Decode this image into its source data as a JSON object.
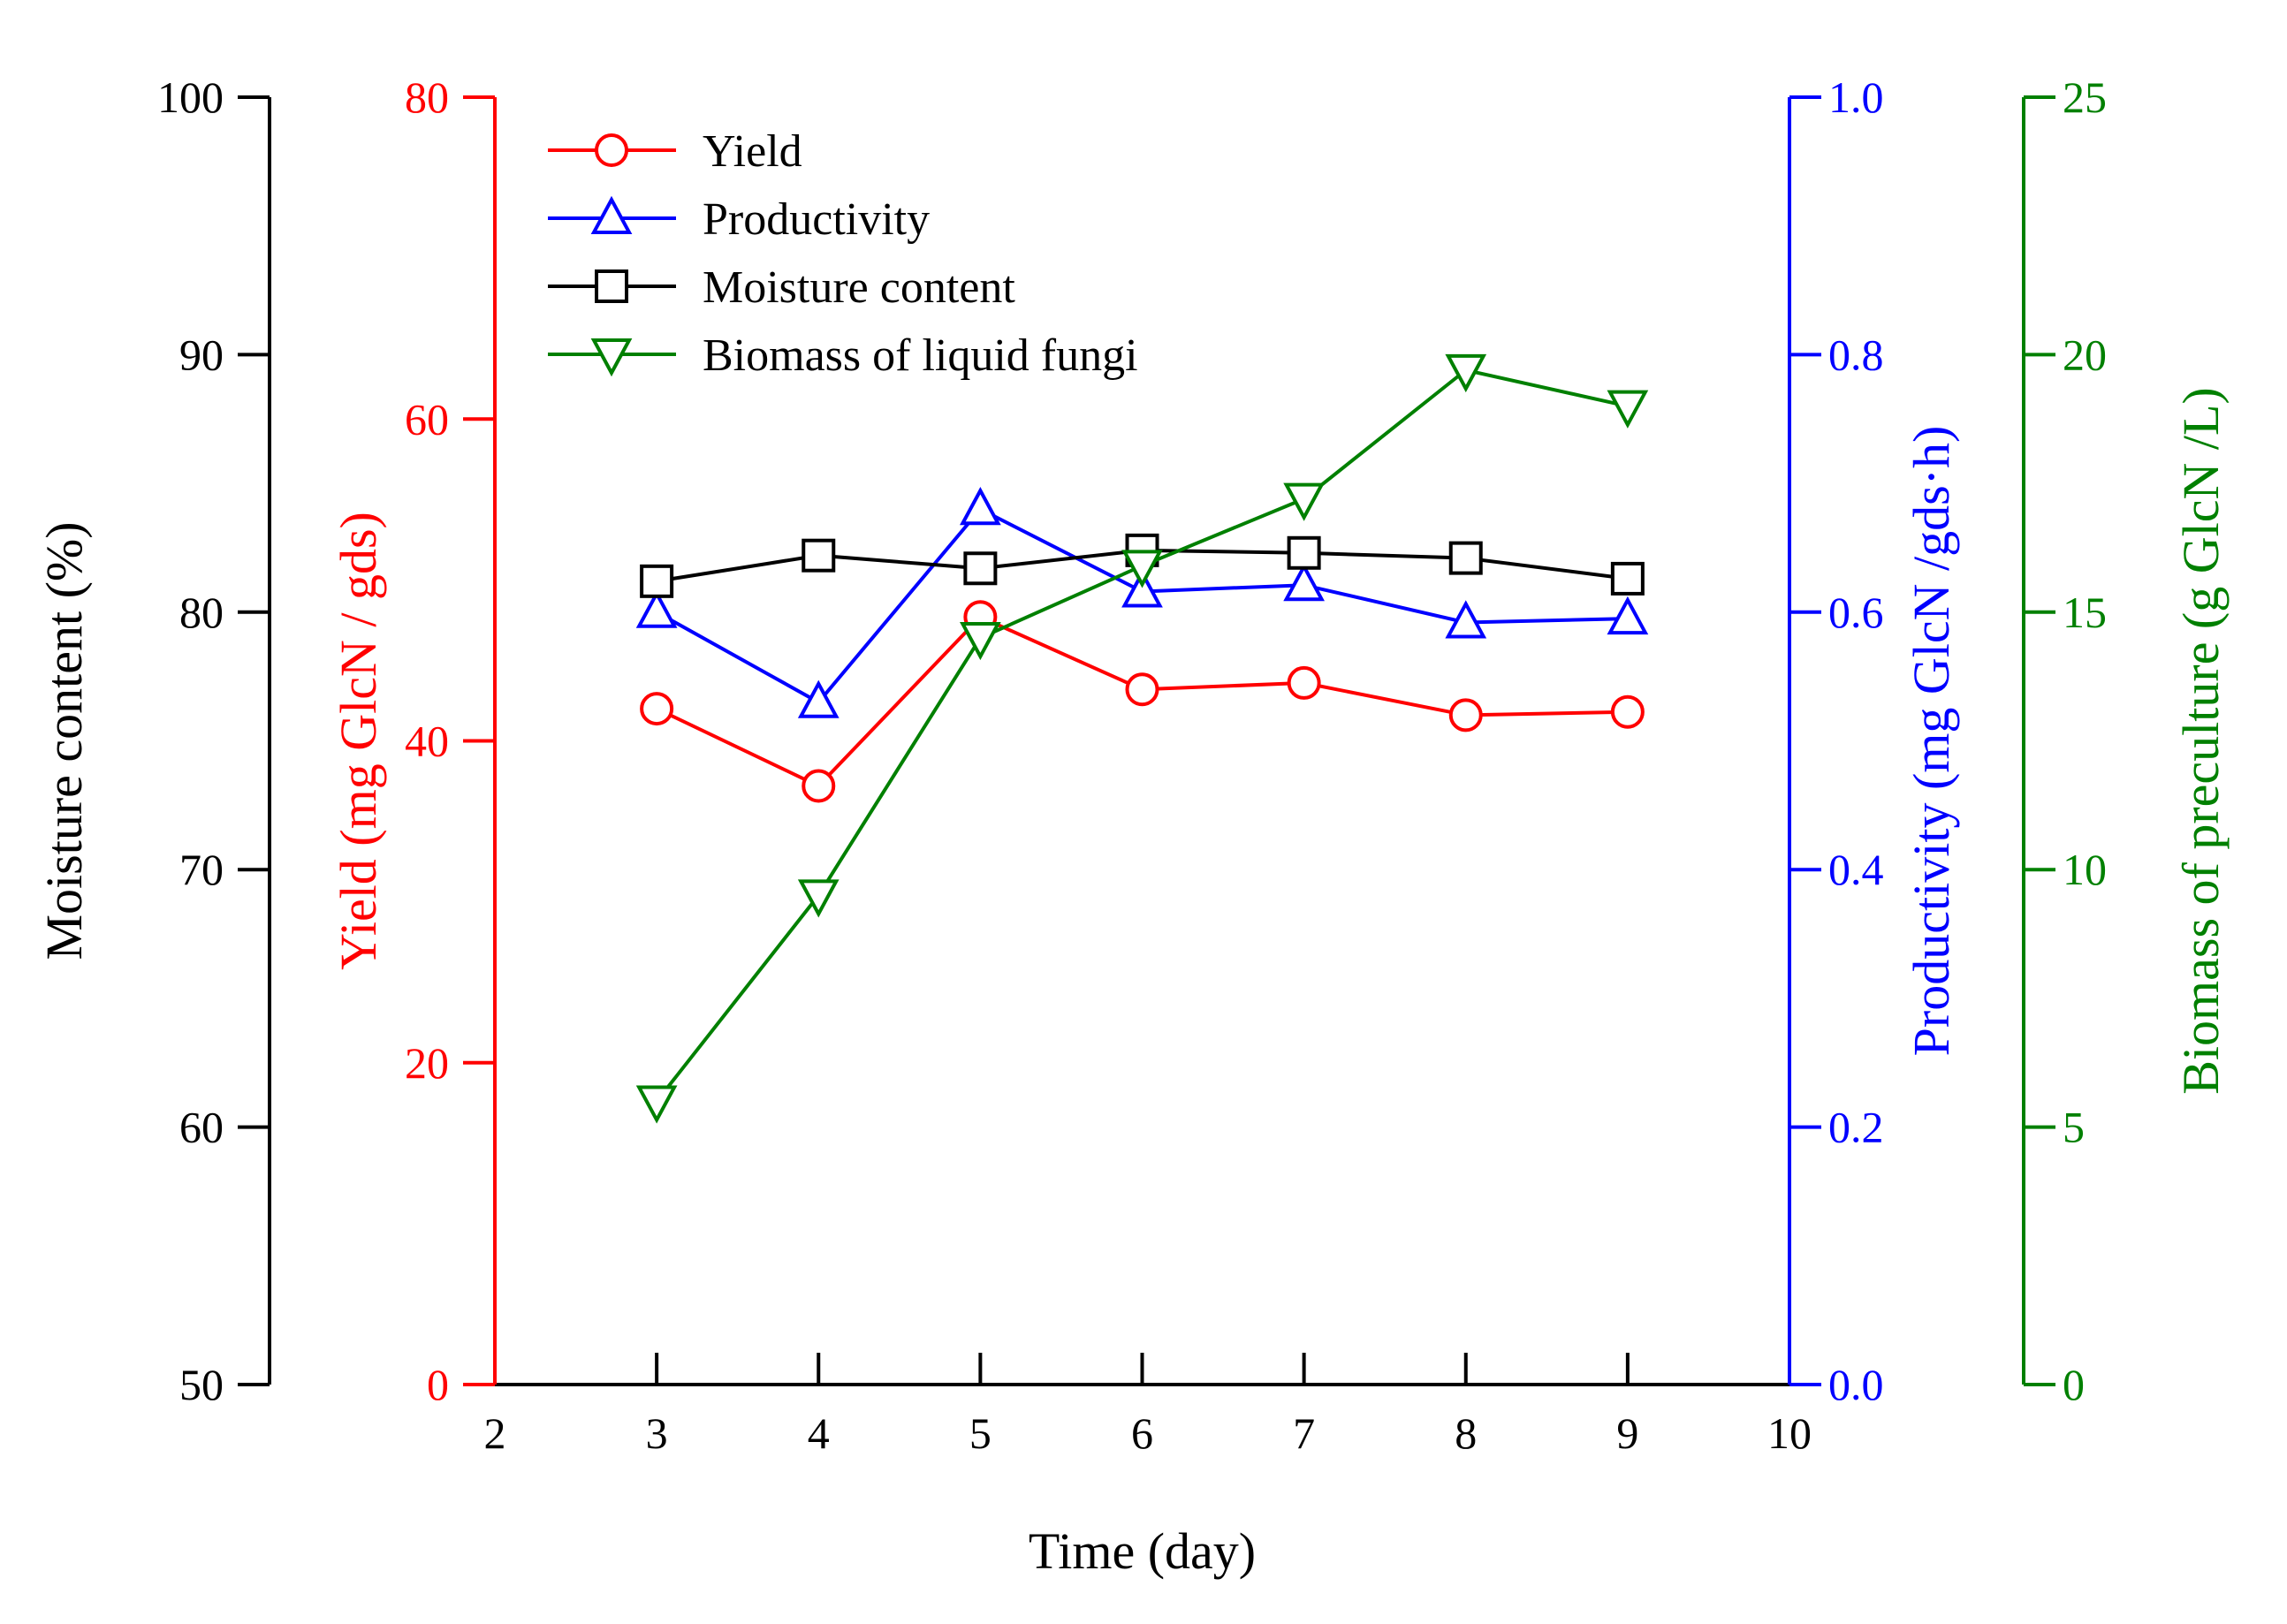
{
  "chart_data": {
    "type": "line",
    "x": [
      3,
      4,
      5,
      6,
      7,
      8,
      9
    ],
    "xlabel": "Time (day)",
    "xlim": [
      2,
      10
    ],
    "xticks": [
      "2",
      "3",
      "4",
      "5",
      "6",
      "7",
      "8",
      "9",
      "10"
    ],
    "axes": {
      "moisture": {
        "label": "Moisture content (%)",
        "range": [
          50,
          100
        ],
        "ticks": [
          "50",
          "60",
          "70",
          "80",
          "90",
          "100"
        ],
        "color": "#000000"
      },
      "yield": {
        "label": "Yield (mg GlcN / gds)",
        "range": [
          0,
          80
        ],
        "ticks": [
          "0",
          "20",
          "40",
          "60",
          "80"
        ],
        "color": "#ff0000"
      },
      "productivity": {
        "label": "Productivity (mg GlcN /gds·h)",
        "range": [
          0,
          1
        ],
        "ticks": [
          "0.0",
          "0.2",
          "0.4",
          "0.6",
          "0.8",
          "1.0"
        ],
        "color": "#0000ff"
      },
      "biomass": {
        "label": "Biomass of preculture (g GlcN /L)",
        "range": [
          0,
          25
        ],
        "ticks": [
          "0",
          "5",
          "10",
          "15",
          "20",
          "25"
        ],
        "color": "#008000"
      }
    },
    "series": [
      {
        "name": "Yield",
        "axis": "yield",
        "marker": "circle",
        "color": "#ff0000",
        "values": [
          42.0,
          37.2,
          47.7,
          43.2,
          43.6,
          41.6,
          41.8
        ]
      },
      {
        "name": "Productivity",
        "axis": "productivity",
        "marker": "triangle-up",
        "color": "#0000ff",
        "values": [
          0.6,
          0.53,
          0.68,
          0.616,
          0.621,
          0.592,
          0.595
        ]
      },
      {
        "name": "Moisture content",
        "axis": "moisture",
        "marker": "square",
        "color": "#000000",
        "values": [
          81.2,
          82.2,
          81.7,
          82.4,
          82.3,
          82.1,
          81.3
        ]
      },
      {
        "name": "Biomass of liquid fungi",
        "axis": "biomass",
        "marker": "triangle-down",
        "color": "#008000",
        "values": [
          5.5,
          9.5,
          14.5,
          15.9,
          17.2,
          19.7,
          19.0
        ]
      }
    ]
  }
}
